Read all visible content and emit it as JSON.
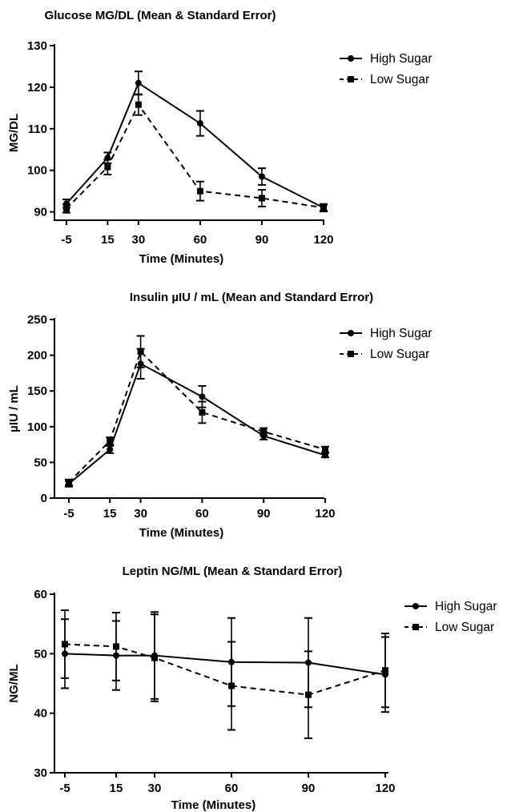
{
  "chart_data": [
    {
      "type": "line",
      "title": "Glucose MG/DL (Mean & Standard Error)",
      "xlabel": "Time (Minutes)",
      "ylabel": "MG/DL",
      "x": [
        -5,
        15,
        30,
        60,
        90,
        120
      ],
      "x_tick_labels": [
        "-5",
        "15",
        "30",
        "60",
        "90",
        "120"
      ],
      "ylim": [
        88,
        130
      ],
      "yticks": [
        90,
        100,
        110,
        120,
        130
      ],
      "y_tick_labels": [
        "90",
        "100",
        "110",
        "120",
        "130"
      ],
      "legend_position": "top-right",
      "series": [
        {
          "name": "High Sugar",
          "marker": "circle",
          "line_style": "solid",
          "values": [
            92,
            103,
            121,
            111.3,
            98.5,
            91
          ],
          "errors": [
            1,
            1.3,
            2.8,
            3,
            2,
            0.7
          ]
        },
        {
          "name": "Low Sugar",
          "marker": "square",
          "line_style": "dashed",
          "values": [
            90.8,
            100.8,
            115.8,
            95,
            93.3,
            91
          ],
          "errors": [
            1,
            1.8,
            2.5,
            2.3,
            2,
            0.9
          ]
        }
      ]
    },
    {
      "type": "line",
      "title": "Insulin µIU / mL (Mean and Standard Error)",
      "xlabel": "Time (Minutes)",
      "ylabel": "µIU / mL",
      "x": [
        -5,
        15,
        30,
        60,
        90,
        120
      ],
      "x_tick_labels": [
        "-5",
        "15",
        "30",
        "60",
        "90",
        "120"
      ],
      "ylim": [
        0,
        250
      ],
      "yticks": [
        0,
        50,
        100,
        150,
        200,
        250
      ],
      "y_tick_labels": [
        "0",
        "50",
        "100",
        "150",
        "200",
        "250"
      ],
      "legend_position": "top-right",
      "series": [
        {
          "name": "High Sugar",
          "marker": "circle",
          "line_style": "solid",
          "values": [
            20,
            68,
            188,
            142,
            87,
            60
          ],
          "errors": [
            4,
            5,
            21,
            15,
            5,
            3
          ]
        },
        {
          "name": "Low Sugar",
          "marker": "square",
          "line_style": "dashed",
          "values": [
            22,
            80,
            205,
            120,
            93,
            68
          ],
          "errors": [
            4,
            5,
            22,
            15,
            5,
            4
          ]
        }
      ]
    },
    {
      "type": "line",
      "title": "Leptin NG/ML (Mean & Standard Error)",
      "xlabel": "Time (Minutes)",
      "ylabel": "NG/ML",
      "x": [
        -5,
        15,
        30,
        60,
        90,
        120
      ],
      "x_tick_labels": [
        "-5",
        "15",
        "30",
        "60",
        "90",
        "120"
      ],
      "ylim": [
        30,
        60
      ],
      "yticks": [
        30,
        40,
        50,
        60
      ],
      "y_tick_labels": [
        "30",
        "40",
        "50",
        "60"
      ],
      "legend_position": "top-right",
      "series": [
        {
          "name": "High Sugar",
          "marker": "circle",
          "line_style": "solid",
          "values": [
            50,
            49.7,
            49.7,
            48.6,
            48.5,
            46.5
          ],
          "errors": [
            5.8,
            5.8,
            7.3,
            7.4,
            7.5,
            6.3
          ]
        },
        {
          "name": "Low Sugar",
          "marker": "square",
          "line_style": "dashed",
          "values": [
            51.6,
            51.2,
            49.3,
            44.6,
            43.1,
            47.2
          ],
          "errors": [
            5.7,
            5.7,
            7.3,
            7.4,
            7.3,
            6.2
          ]
        }
      ]
    }
  ]
}
